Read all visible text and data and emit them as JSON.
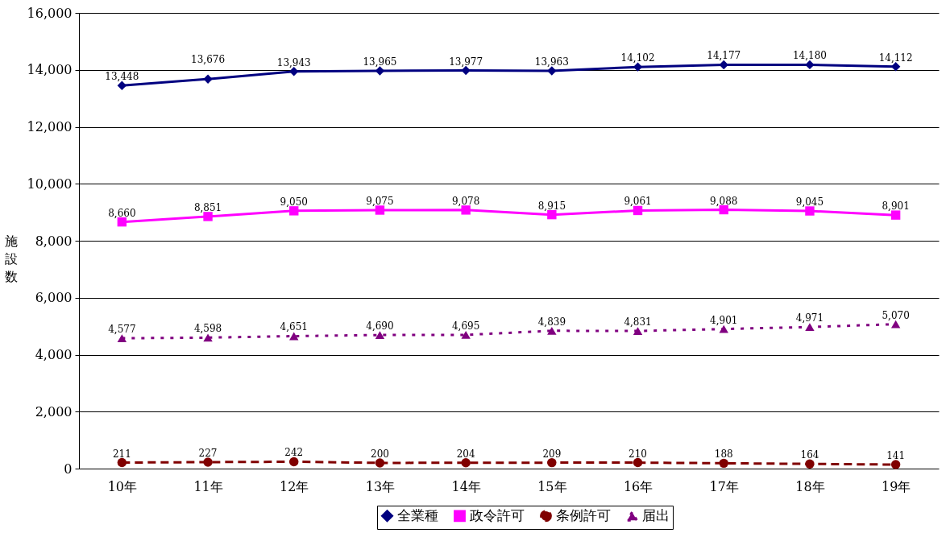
{
  "chart_data": {
    "type": "line",
    "ylabel": "施設数",
    "categories": [
      "10年",
      "11年",
      "12年",
      "13年",
      "14年",
      "15年",
      "16年",
      "17年",
      "18年",
      "19年"
    ],
    "series": [
      {
        "name": "全業種",
        "color": "#000080",
        "marker": "diamond",
        "line_style": "solid",
        "values": [
          13448,
          13676,
          13943,
          13965,
          13977,
          13963,
          14102,
          14177,
          14180,
          14112
        ],
        "value_labels": [
          "13,448",
          "13,676",
          "13,943",
          "13,965",
          "13,977",
          "13,963",
          "14,102",
          "14,177",
          "14,180",
          "14,112"
        ]
      },
      {
        "name": "政令許可",
        "color": "#ff00ff",
        "marker": "square",
        "line_style": "solid",
        "values": [
          8660,
          8851,
          9050,
          9075,
          9078,
          8915,
          9061,
          9088,
          9045,
          8901
        ],
        "value_labels": [
          "8,660",
          "8,851",
          "9,050",
          "9,075",
          "9,078",
          "8,915",
          "9,061",
          "9,088",
          "9,045",
          "8,901"
        ]
      },
      {
        "name": "条例許可",
        "color": "#800000",
        "marker": "circle",
        "line_style": "dashed",
        "values": [
          211,
          227,
          242,
          200,
          204,
          209,
          210,
          188,
          164,
          141
        ],
        "value_labels": [
          "211",
          "227",
          "242",
          "200",
          "204",
          "209",
          "210",
          "188",
          "164",
          "141"
        ]
      },
      {
        "name": "届出",
        "color": "#800080",
        "marker": "triangle",
        "line_style": "dotted",
        "values": [
          4577,
          4598,
          4651,
          4690,
          4695,
          4839,
          4831,
          4901,
          4971,
          5070
        ],
        "value_labels": [
          "4,577",
          "4,598",
          "4,651",
          "4,690",
          "4,695",
          "4,839",
          "4,831",
          "4,901",
          "4,971",
          "5,070"
        ]
      }
    ],
    "ylim": [
      0,
      16000
    ],
    "yticks": [
      0,
      {
        "value": 2000,
        "label": "2,000"
      },
      {
        "value": 4000,
        "label": "4,000"
      },
      {
        "value": 6000,
        "label": "6,000"
      },
      {
        "value": 8000,
        "label": "8,000"
      },
      {
        "value": 10000,
        "label": "10,000"
      },
      {
        "value": 12000,
        "label": "12,000"
      },
      {
        "value": 14000,
        "label": "14,000"
      },
      {
        "value": 16000,
        "label": "16,000"
      }
    ],
    "grid": "y",
    "legend": "bottom"
  }
}
